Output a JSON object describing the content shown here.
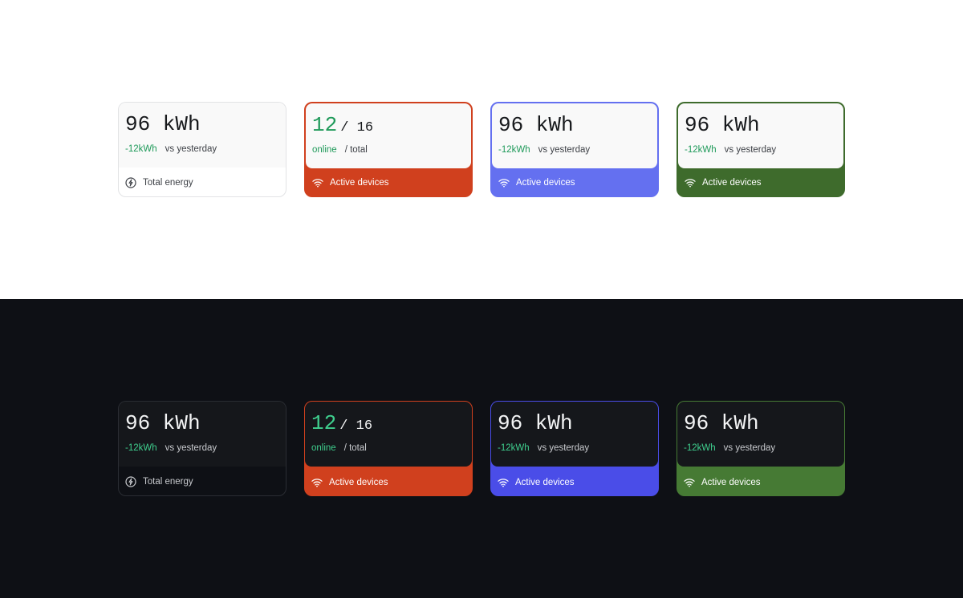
{
  "panels": [
    {
      "background": "#ffffff",
      "text_color": "#17191c",
      "muted_color": "#3d4046",
      "positive_color": "#1f9a5a",
      "card_fill": "#f9f9f9",
      "border_width": 2,
      "cards": [
        {
          "value": "96 kWh",
          "delta": "-12kWh",
          "note": "vs yesterday",
          "label": "Total energy",
          "filled": false,
          "border_color": "#e2e3e5",
          "footer_color": "#ffffff"
        },
        {
          "value": "12",
          "suffix": "/ 16",
          "value_color": "#1f9a5a",
          "delta": "online",
          "note": "/ total",
          "label": "Active devices",
          "filled": true,
          "border_color": "#d0401e",
          "footer_color": "#d0401e"
        },
        {
          "value": "96 kWh",
          "delta": "-12kWh",
          "note": "vs yesterday",
          "label": "Active devices",
          "filled": true,
          "border_color": "#6470f0",
          "footer_color": "#6470f0"
        },
        {
          "value": "96 kWh",
          "delta": "-12kWh",
          "note": "vs yesterday",
          "label": "Active devices",
          "filled": true,
          "border_color": "#3e6b2c",
          "footer_color": "#3e6b2c"
        }
      ]
    },
    {
      "background": "#0e1015",
      "text_color": "#f3f4f5",
      "muted_color": "#c9cbcf",
      "positive_color": "#3fcf8e",
      "card_fill": "#15171b",
      "border_width": 1,
      "cards": [
        {
          "value": "96 kWh",
          "delta": "-12kWh",
          "note": "vs yesterday",
          "label": "Total energy",
          "filled": false,
          "border_color": "#2a2d33",
          "footer_color": "#0e1015"
        },
        {
          "value": "12",
          "suffix": "/ 16",
          "value_color": "#3fcf8e",
          "delta": "online",
          "note": "/ total",
          "label": "Active devices",
          "filled": true,
          "border_color": "#d0401e",
          "footer_color": "#d0401e"
        },
        {
          "value": "96 kWh",
          "delta": "-12kWh",
          "note": "vs yesterday",
          "label": "Active devices",
          "filled": true,
          "border_color": "#4a4de8",
          "footer_color": "#4a4de8"
        },
        {
          "value": "96 kWh",
          "delta": "-12kWh",
          "note": "vs yesterday",
          "label": "Active devices",
          "filled": true,
          "border_color": "#467a34",
          "footer_color": "#467a34"
        }
      ]
    }
  ]
}
